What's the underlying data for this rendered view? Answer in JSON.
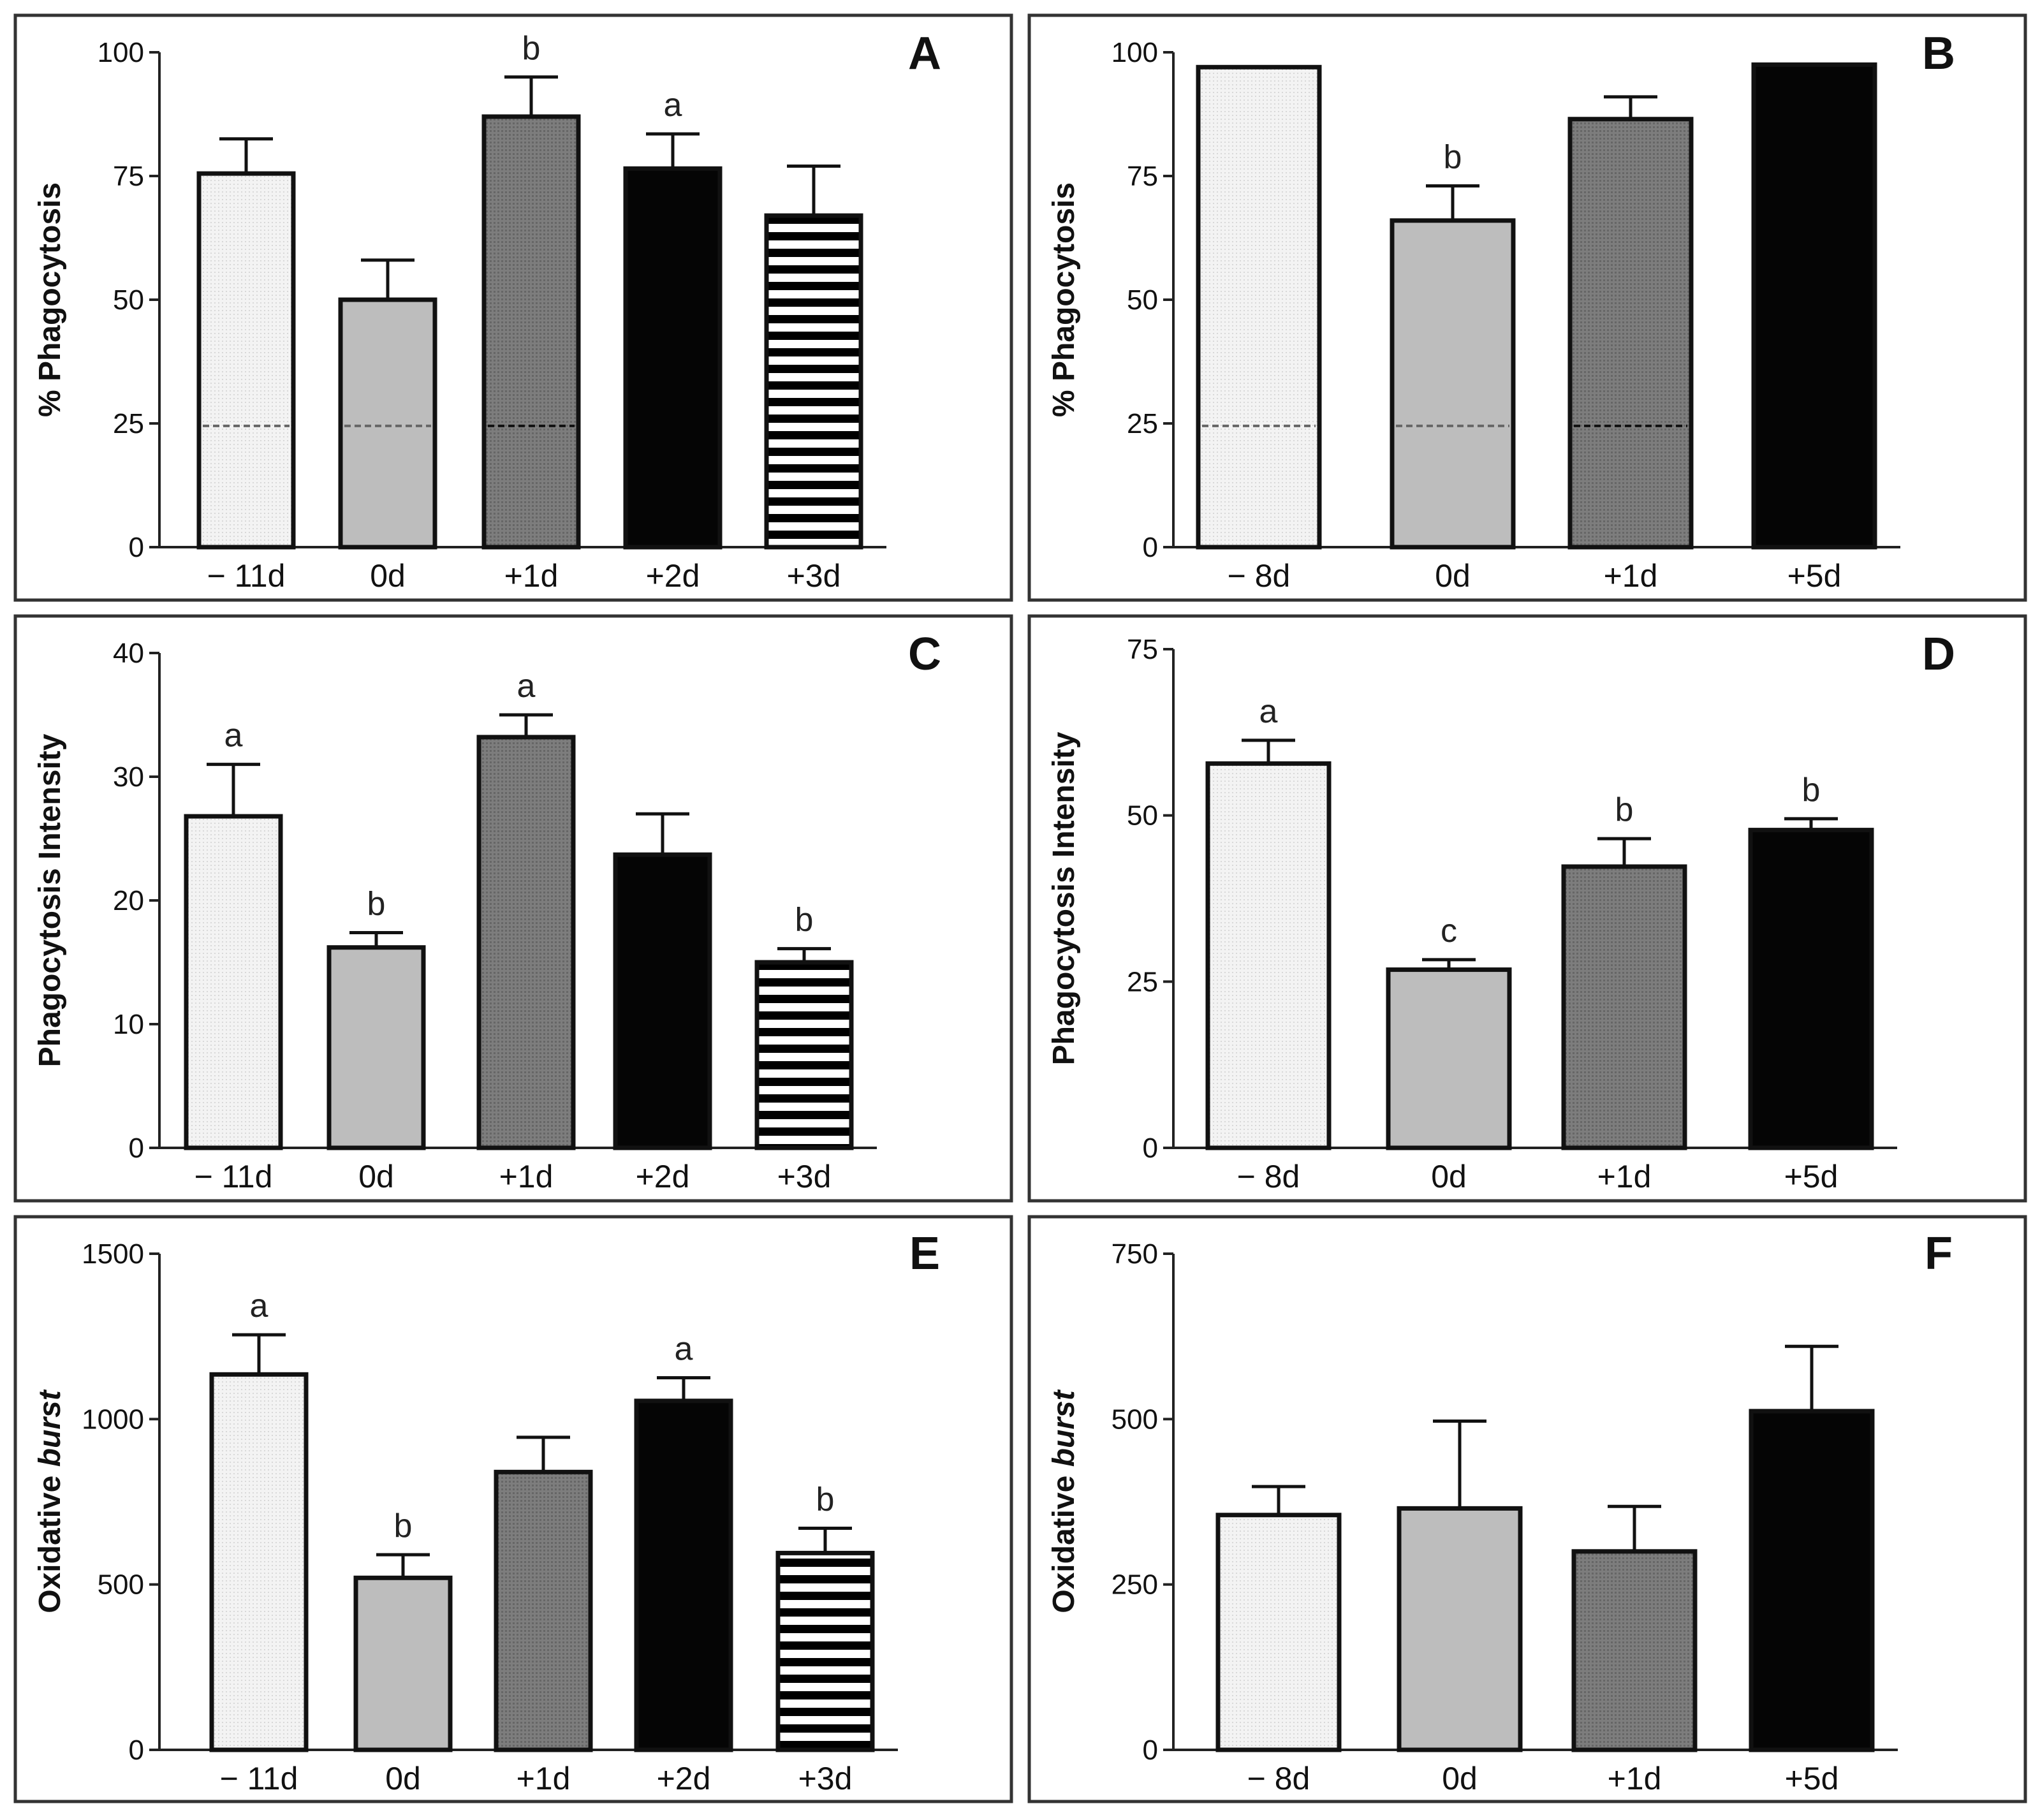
{
  "figure": {
    "background": "#ffffff"
  },
  "styles": {
    "lightdot": {
      "fill": "#f0f0f0"
    },
    "lightgray": {
      "fill": "#bdbdbd"
    },
    "darkgray": {
      "fill": "#7a7a7a"
    },
    "black": {
      "fill": "#050505"
    },
    "stripes": {
      "fill": "#ffffff",
      "stripe": "#000000"
    }
  },
  "chart_data": [
    {
      "panel": "A",
      "type": "bar",
      "title": "",
      "xlabel": "",
      "ylabel": "% Phagocytosis",
      "ylim": [
        0,
        100
      ],
      "yticks": [
        0,
        25,
        50,
        75,
        100
      ],
      "ytick_labels": [
        "0",
        "25",
        "50",
        "75",
        "100"
      ],
      "categories": [
        "− 11d",
        "0d",
        "+1d",
        "+2d",
        "+3d"
      ],
      "values": [
        75.5,
        50,
        87,
        76.5,
        67
      ],
      "errors": [
        7,
        8,
        8,
        7,
        10
      ],
      "significance": [
        "",
        "",
        "b",
        "a",
        ""
      ],
      "bar_styles": [
        "lightdot",
        "lightgray",
        "darkgray",
        "black",
        "stripes"
      ],
      "reference_line": {
        "value": 24.5,
        "style": "dashed",
        "visible_on": [
          0,
          1,
          2
        ]
      }
    },
    {
      "panel": "B",
      "type": "bar",
      "title": "",
      "xlabel": "",
      "ylabel": "% Phagocytosis",
      "ylim": [
        0,
        100
      ],
      "yticks": [
        0,
        25,
        50,
        75,
        100
      ],
      "ytick_labels": [
        "0",
        "25",
        "50",
        "75",
        "100"
      ],
      "categories": [
        "− 8d",
        "0d",
        "+1d",
        "+5d"
      ],
      "values": [
        97,
        66,
        86.5,
        97.5
      ],
      "errors": [
        0,
        7,
        4.5,
        0
      ],
      "significance": [
        "",
        "b",
        "",
        ""
      ],
      "bar_styles": [
        "lightdot",
        "lightgray",
        "darkgray",
        "black"
      ],
      "reference_line": {
        "value": 24.5,
        "style": "dashed",
        "visible_on": [
          0,
          1,
          2
        ]
      }
    },
    {
      "panel": "C",
      "type": "bar",
      "title": "",
      "xlabel": "",
      "ylabel": "Phagocytosis Intensity",
      "ylim": [
        0,
        40
      ],
      "yticks": [
        0,
        10,
        20,
        30,
        40
      ],
      "ytick_labels": [
        "0",
        "10",
        "20",
        "30",
        "40"
      ],
      "categories": [
        "− 11d",
        "0d",
        "+1d",
        "+2d",
        "+3d"
      ],
      "values": [
        26.8,
        16.2,
        33.2,
        23.7,
        15
      ],
      "errors": [
        4.2,
        1.2,
        1.8,
        3.3,
        1.1
      ],
      "significance": [
        "a",
        "b",
        "a",
        "",
        "b"
      ],
      "bar_styles": [
        "lightdot",
        "lightgray",
        "darkgray",
        "black",
        "stripes"
      ]
    },
    {
      "panel": "D",
      "type": "bar",
      "title": "",
      "xlabel": "",
      "ylabel": "Phagocytosis Intensity",
      "ylim": [
        0,
        75
      ],
      "yticks": [
        0,
        25,
        50,
        75
      ],
      "ytick_labels": [
        "0",
        "25",
        "50",
        "75"
      ],
      "categories": [
        "− 8d",
        "0d",
        "+1d",
        "+5d"
      ],
      "values": [
        57.8,
        26.8,
        42.3,
        47.8
      ],
      "errors": [
        3.5,
        1.5,
        4.2,
        1.7
      ],
      "significance": [
        "a",
        "c",
        "b",
        "b"
      ],
      "bar_styles": [
        "lightdot",
        "lightgray",
        "darkgray",
        "black"
      ]
    },
    {
      "panel": "E",
      "type": "bar",
      "title": "",
      "xlabel": "",
      "ylabel": "Oxidative burst",
      "ylabel_plain": "Oxidative ",
      "ylabel_italic": "burst",
      "ylim": [
        0,
        1500
      ],
      "yticks": [
        0,
        500,
        1000,
        1500
      ],
      "ytick_labels": [
        "0",
        "500",
        "1000",
        "1500"
      ],
      "categories": [
        "− 11d",
        "0d",
        "+1d",
        "+2d",
        "+3d"
      ],
      "values": [
        1135,
        520,
        840,
        1055,
        595
      ],
      "errors": [
        120,
        70,
        105,
        70,
        75
      ],
      "significance": [
        "a",
        "b",
        "",
        "a",
        "b"
      ],
      "bar_styles": [
        "lightdot",
        "lightgray",
        "darkgray",
        "black",
        "stripes"
      ]
    },
    {
      "panel": "F",
      "type": "bar",
      "title": "",
      "xlabel": "",
      "ylabel": "Oxidative burst",
      "ylabel_plain": "Oxidative ",
      "ylabel_italic": "burst",
      "ylim": [
        0,
        750
      ],
      "yticks": [
        0,
        250,
        500,
        750
      ],
      "ytick_labels": [
        "0",
        "250",
        "500",
        "750"
      ],
      "categories": [
        "− 8d",
        "0d",
        "+1d",
        "+5d"
      ],
      "values": [
        355,
        365,
        300,
        512
      ],
      "errors": [
        43,
        132,
        68,
        98
      ],
      "significance": [
        "",
        "",
        "",
        ""
      ],
      "bar_styles": [
        "lightdot",
        "lightgray",
        "darkgray",
        "black"
      ]
    }
  ]
}
